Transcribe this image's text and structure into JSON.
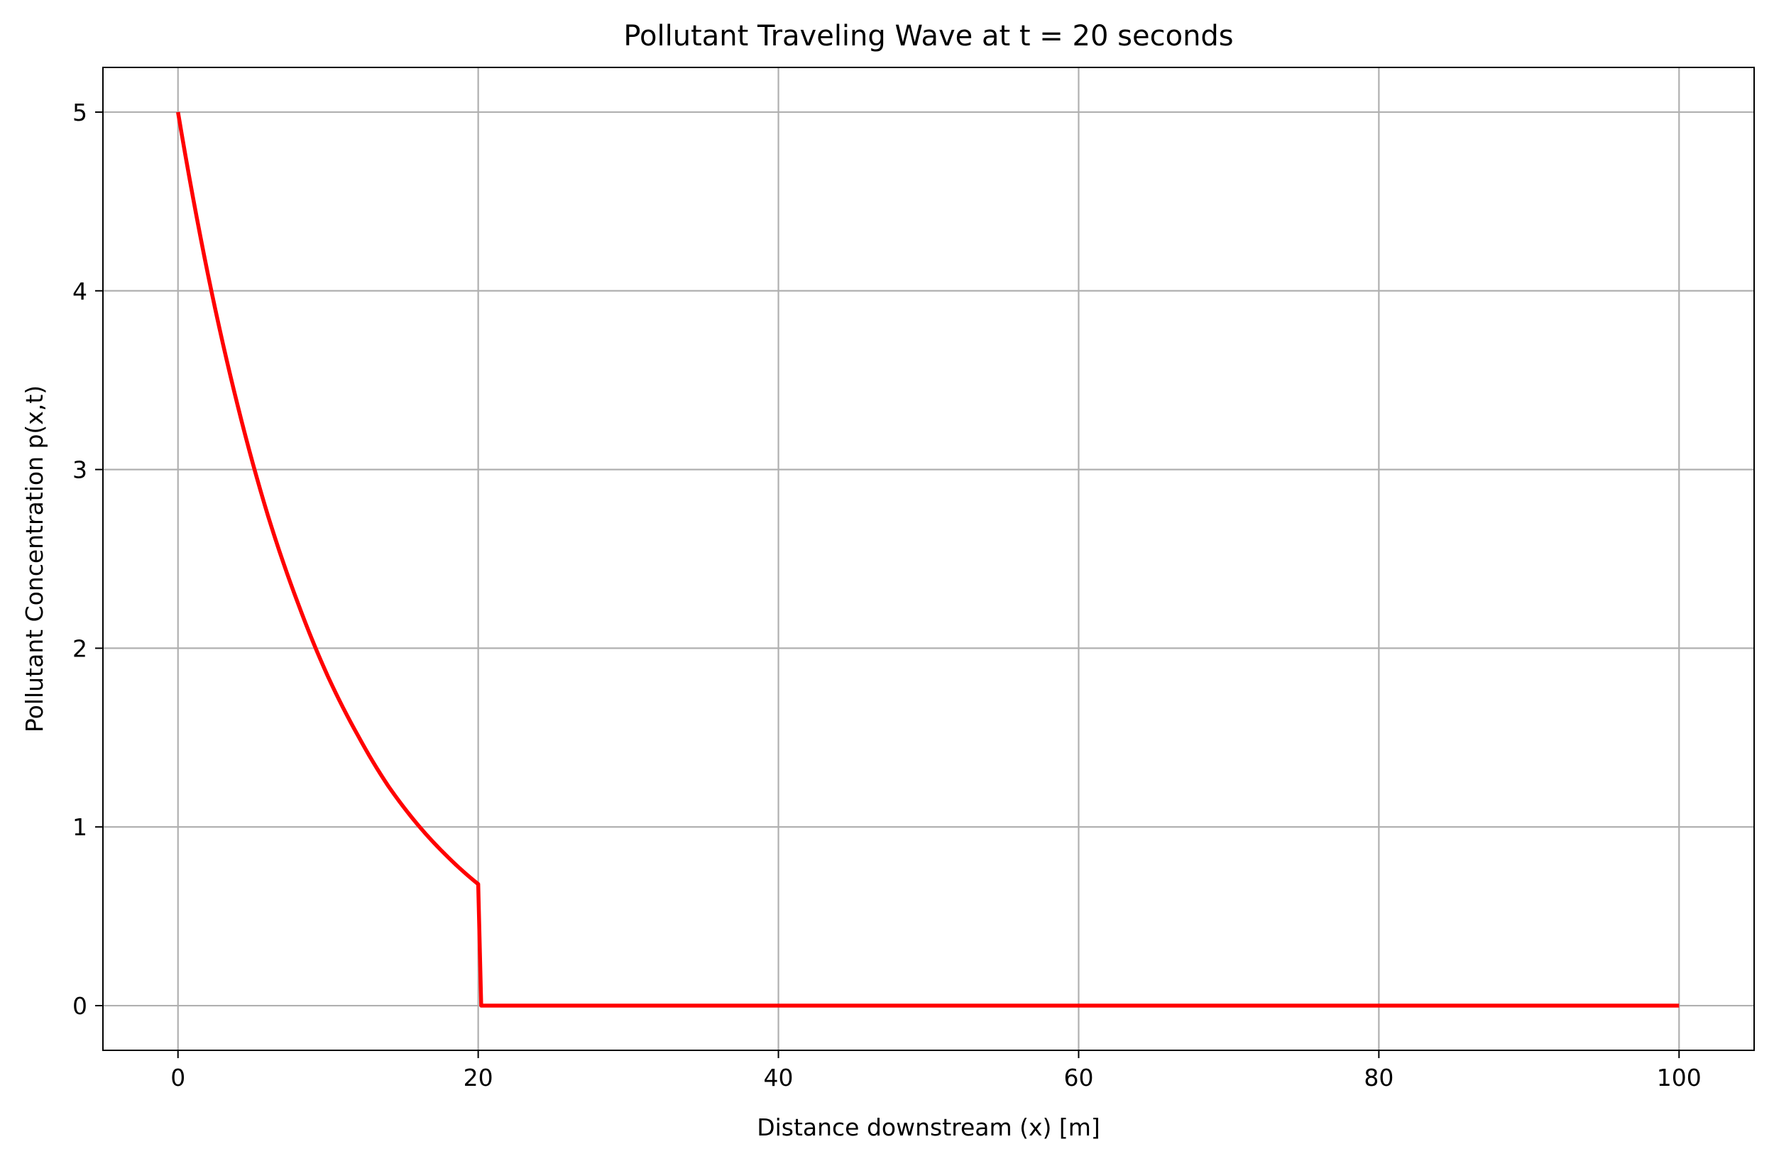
{
  "chart_data": {
    "type": "line",
    "title": "Pollutant Traveling Wave at t = 20 seconds",
    "xlabel": "Distance downstream (x) [m]",
    "ylabel": "Pollutant Concentration p(x,t)",
    "xlim": [
      -5,
      105
    ],
    "ylim": [
      -0.25,
      5.25
    ],
    "xticks": [
      0,
      20,
      40,
      60,
      80,
      100
    ],
    "yticks": [
      0,
      1,
      2,
      3,
      4,
      5
    ],
    "xtick_labels": [
      "0",
      "20",
      "40",
      "60",
      "80",
      "100"
    ],
    "ytick_labels": [
      "0",
      "1",
      "2",
      "3",
      "4",
      "5"
    ],
    "grid": true,
    "series": [
      {
        "color": "#ff0000",
        "x": [
          0,
          2,
          4,
          6,
          8,
          10,
          12,
          14,
          16,
          18,
          20,
          20.2,
          100
        ],
        "y": [
          5.0,
          4.09,
          3.35,
          2.74,
          2.25,
          1.84,
          1.51,
          1.23,
          1.01,
          0.83,
          0.68,
          0.0,
          0.0
        ]
      }
    ]
  }
}
